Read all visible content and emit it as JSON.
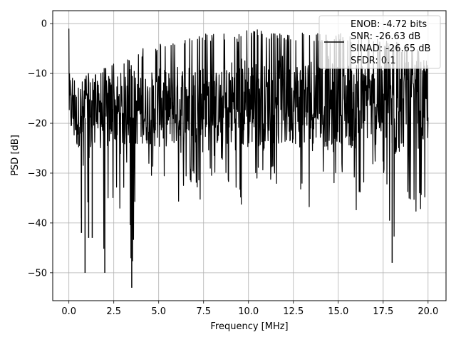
{
  "chart_data": {
    "type": "line",
    "xlabel": "Frequency [MHz]",
    "ylabel": "PSD [dB]",
    "xlim": [
      -0.9,
      21.0
    ],
    "ylim": [
      -55.6,
      2.6
    ],
    "xticks": [
      0.0,
      2.5,
      5.0,
      7.5,
      10.0,
      12.5,
      15.0,
      17.5,
      20.0
    ],
    "xtick_labels": [
      "0.0",
      "2.5",
      "5.0",
      "7.5",
      "10.0",
      "12.5",
      "15.0",
      "17.5",
      "20.0"
    ],
    "yticks": [
      0,
      -10,
      -20,
      -30,
      -40,
      -50
    ],
    "ytick_labels": [
      "0",
      "−10",
      "−20",
      "−30",
      "−40",
      "−50"
    ],
    "grid": true,
    "legend_position": "top-right",
    "legend_lines": [
      "ENOB: -4.72 bits",
      "SNR: -26.63 dB",
      "SINAD: -26.65 dB",
      "SFDR: 0.1"
    ],
    "series_color": "#000000",
    "series": [
      {
        "name": "ENOB: -4.72 bits\nSNR: -26.63 dB\nSINAD: -26.65 dB\nSFDR: 0.1",
        "x": [
          0.0,
          0.02,
          0.04,
          0.06,
          0.1,
          0.15,
          0.2,
          0.25,
          0.3,
          0.35,
          0.4,
          0.5,
          0.6,
          0.7,
          0.75,
          0.8,
          0.9,
          0.95,
          1.0,
          1.1,
          1.25,
          1.3,
          1.4,
          1.55,
          1.7,
          2.0,
          2.1,
          2.5,
          2.9,
          3.0,
          3.3,
          3.5,
          3.7,
          3.9,
          4.2,
          4.4,
          4.8,
          5.0,
          5.5,
          5.8,
          6.2,
          6.6,
          6.8,
          7.0,
          7.5,
          7.7,
          8.0,
          8.5,
          9.0,
          9.5,
          10.0,
          10.3,
          10.5,
          10.8,
          11.0,
          11.5,
          12.0,
          12.5,
          12.8,
          13.0,
          13.5,
          14.0,
          14.5,
          14.7,
          15.0,
          15.5,
          15.8,
          16.0,
          16.5,
          17.0,
          17.2,
          17.5,
          17.8,
          18.0,
          18.5,
          18.8,
          19.0,
          19.5,
          19.9,
          20.0
        ],
        "mean": [
          -18,
          -15,
          -18,
          -16,
          -17,
          -18,
          -17,
          -18,
          -19,
          -18,
          -19,
          -19,
          -18,
          -19,
          -18,
          -18,
          -19,
          -18,
          -18,
          -18,
          -19,
          -18,
          -18,
          -18,
          -18,
          -18,
          -18,
          -17,
          -18,
          -18,
          -17,
          -17,
          -18,
          -17,
          -18,
          -17,
          -17,
          -17,
          -17,
          -17,
          -17,
          -16,
          -16,
          -16,
          -17,
          -17,
          -17,
          -17,
          -16,
          -16,
          -16,
          -16,
          -16,
          -17,
          -16,
          -16,
          -16,
          -16,
          -16,
          -16,
          -16,
          -16,
          -16,
          -17,
          -16,
          -16,
          -17,
          -16,
          -16,
          -16,
          -17,
          -16,
          -16,
          -17,
          -17,
          -16,
          -17,
          -16,
          -17,
          -17
        ],
        "upper": [
          -1,
          -6,
          -10,
          -9,
          -11,
          -11,
          -10,
          -11,
          -11,
          -10,
          -10,
          -11,
          -10,
          -10,
          -10,
          -10,
          -10,
          -10,
          -10,
          -10,
          -10,
          -10,
          -10,
          -10,
          -9,
          -9,
          -9,
          -8,
          -8,
          -8,
          -7,
          -7,
          -6,
          -5,
          -5,
          -4,
          -4,
          -4,
          -3,
          -3,
          -3,
          -2,
          -2,
          -2,
          -2,
          -2,
          -2,
          -2,
          -2,
          -2,
          -1,
          -1,
          -1,
          -1,
          -2,
          -2,
          -2,
          -2,
          -2,
          -1,
          -2,
          -2,
          -2,
          -2,
          -2,
          -2,
          -2,
          -2,
          -3,
          -2,
          -3,
          -3,
          -3,
          -3,
          -4,
          -4,
          -4,
          -5,
          -6,
          -7
        ],
        "lower": [
          -27,
          -24,
          -39,
          -30,
          -29,
          -28,
          -30,
          -29,
          -31,
          -29,
          -32,
          -35,
          -33,
          -42,
          -35,
          -31,
          -50,
          -35,
          -30,
          -43,
          -38,
          -43,
          -32,
          -30,
          -32,
          -50,
          -38,
          -36,
          -38,
          -37,
          -29,
          -53,
          -34,
          -28,
          -34,
          -29,
          -33,
          -33,
          -31,
          -30,
          -38,
          -30,
          -33,
          -31,
          -38,
          -35,
          -30,
          -30,
          -35,
          -37,
          -36,
          -33,
          -31,
          -33,
          -31,
          -32,
          -38,
          -30,
          -36,
          -33,
          -38,
          -30,
          -38,
          -36,
          -30,
          -34,
          -32,
          -38,
          -31,
          -30,
          -34,
          -30,
          -37,
          -48,
          -35,
          -35,
          -37,
          -38,
          -35,
          -30
        ]
      }
    ]
  }
}
